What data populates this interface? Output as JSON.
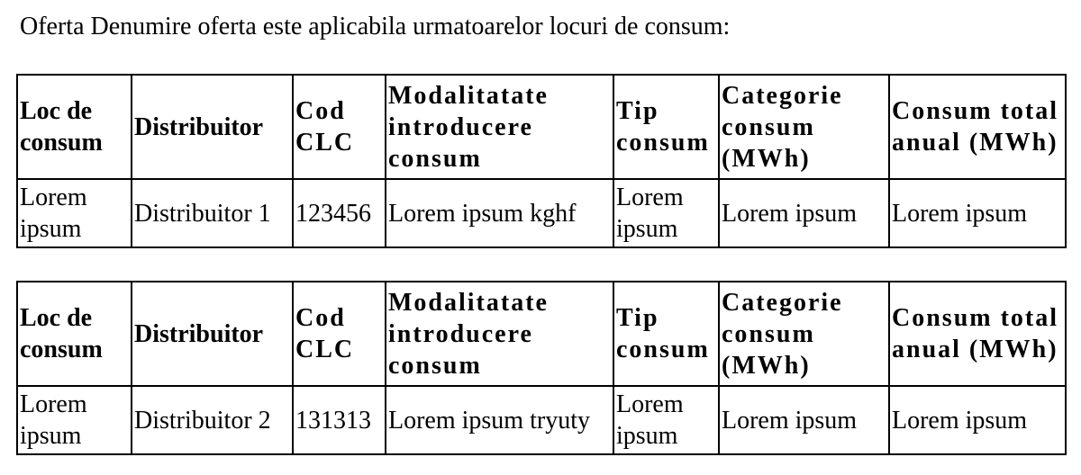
{
  "intro_text": "Oferta Denumire oferta este aplicabila urmatoarelor locuri de consum:",
  "headers": {
    "loc": "Loc de consum",
    "distribuitor": "Distribuitor",
    "cod": "Cod CLC",
    "modalitate": "Modalitatate introducere consum",
    "tip": "Tip consum",
    "categorie": "Categorie consum (MWh)",
    "consum_total": "Consum total anual (MWh)"
  },
  "tables": [
    {
      "row": {
        "loc": "Lorem ipsum",
        "distribuitor": "Distribuitor 1",
        "cod": "123456",
        "modalitate": "Lorem ipsum kghf",
        "tip": "Lorem ipsum",
        "categorie": "Lorem ipsum",
        "consum_total": "Lorem ipsum"
      }
    },
    {
      "row": {
        "loc": "Lorem ipsum",
        "distribuitor": "Distribuitor 2",
        "cod": "131313",
        "modalitate": "Lorem ipsum tryuty",
        "tip": "Lorem ipsum",
        "categorie": "Lorem ipsum",
        "consum_total": "Lorem ipsum"
      }
    }
  ]
}
